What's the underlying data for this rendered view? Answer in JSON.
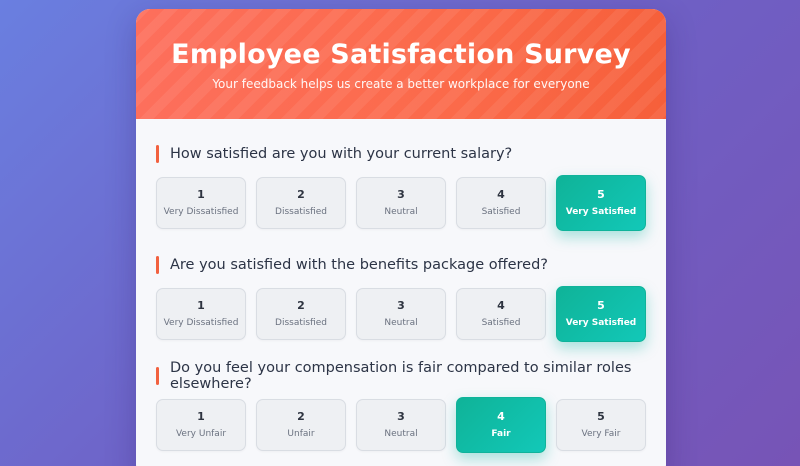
{
  "header": {
    "title": "Employee Satisfaction Survey",
    "subtitle": "Your feedback helps us create a better workplace for everyone"
  },
  "questions": [
    {
      "text": "How satisfied are you with your current salary?",
      "selected": 5,
      "options": [
        {
          "num": "1",
          "label": "Very Dissatisfied"
        },
        {
          "num": "2",
          "label": "Dissatisfied"
        },
        {
          "num": "3",
          "label": "Neutral"
        },
        {
          "num": "4",
          "label": "Satisfied"
        },
        {
          "num": "5",
          "label": "Very Satisfied"
        }
      ]
    },
    {
      "text": "Are you satisfied with the benefits package offered?",
      "selected": 5,
      "options": [
        {
          "num": "1",
          "label": "Very Dissatisfied"
        },
        {
          "num": "2",
          "label": "Dissatisfied"
        },
        {
          "num": "3",
          "label": "Neutral"
        },
        {
          "num": "4",
          "label": "Satisfied"
        },
        {
          "num": "5",
          "label": "Very Satisfied"
        }
      ]
    },
    {
      "text": "Do you feel your compensation is fair compared to similar roles elsewhere?",
      "selected": 4,
      "options": [
        {
          "num": "1",
          "label": "Very Unfair"
        },
        {
          "num": "2",
          "label": "Unfair"
        },
        {
          "num": "3",
          "label": "Neutral"
        },
        {
          "num": "4",
          "label": "Fair"
        },
        {
          "num": "5",
          "label": "Very Fair"
        }
      ]
    }
  ],
  "colors": {
    "background": "#6f5fc4",
    "header_accent": "#fb6a4a",
    "question_bar": "#f2613f",
    "selected": "#12c8b8"
  }
}
